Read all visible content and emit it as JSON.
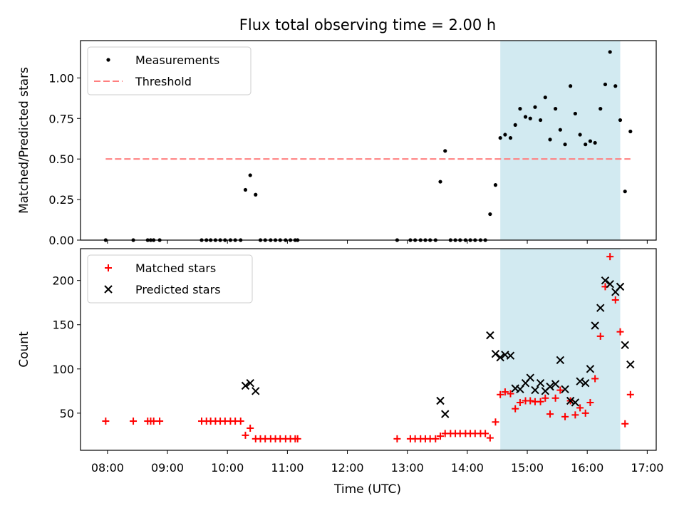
{
  "title": "Flux total observing time = 2.00 h",
  "xlabel": "Time (UTC)",
  "x_ticks": [
    "08:00",
    "09:00",
    "10:00",
    "11:00",
    "12:00",
    "13:00",
    "14:00",
    "15:00",
    "16:00",
    "17:00"
  ],
  "colors": {
    "measure": "#000000",
    "threshold": "#ff7f7f",
    "matched": "#ff0000",
    "predicted": "#000000",
    "shade": "#add8e6"
  },
  "chart_data": [
    {
      "type": "scatter",
      "panel": "top",
      "ylabel": "Matched/Predicted stars",
      "xlim": [
        7.55,
        17.15
      ],
      "ylim": [
        0,
        1.23
      ],
      "y_ticks": [
        0,
        0.25,
        0.5,
        0.75,
        1.0
      ],
      "y_tick_labels": [
        "0.00",
        "0.25",
        "0.50",
        "0.75",
        "1.00"
      ],
      "shaded_region": [
        14.55,
        16.55
      ],
      "legend": {
        "position": "top-left",
        "entries": [
          "Measurements",
          "Threshold"
        ]
      },
      "threshold": {
        "name": "Threshold",
        "x": [
          7.97,
          16.72
        ],
        "y": 0.5
      },
      "series": [
        {
          "name": "Measurements",
          "marker": "dot",
          "x": [
            7.97,
            8.43,
            8.67,
            8.72,
            8.77,
            8.87,
            9.57,
            9.65,
            9.72,
            9.8,
            9.88,
            9.96,
            10.05,
            10.13,
            10.22,
            10.3,
            10.38,
            10.47,
            10.55,
            10.63,
            10.72,
            10.8,
            10.88,
            10.97,
            11.05,
            11.13,
            11.17,
            12.83,
            13.05,
            13.13,
            13.22,
            13.3,
            13.38,
            13.47,
            13.55,
            13.63,
            13.72,
            13.8,
            13.88,
            13.97,
            14.05,
            14.13,
            14.22,
            14.3,
            14.38,
            14.47,
            14.55,
            14.63,
            14.72,
            14.8,
            14.88,
            14.97,
            15.05,
            15.13,
            15.22,
            15.3,
            15.38,
            15.47,
            15.55,
            15.63,
            15.72,
            15.8,
            15.88,
            15.97,
            16.05,
            16.13,
            16.22,
            16.3,
            16.38,
            16.47,
            16.55,
            16.63,
            16.72
          ],
          "y": [
            0,
            0,
            0,
            0,
            0,
            0,
            0,
            0,
            0,
            0,
            0,
            0,
            0,
            0,
            0,
            0.31,
            0.4,
            0.28,
            0,
            0,
            0,
            0,
            0,
            0,
            0,
            0,
            0,
            0,
            0,
            0,
            0,
            0,
            0,
            0,
            0.36,
            0.55,
            0,
            0,
            0,
            0,
            0,
            0,
            0,
            0,
            0.16,
            0.34,
            0.63,
            0.65,
            0.63,
            0.71,
            0.81,
            0.76,
            0.75,
            0.82,
            0.74,
            0.88,
            0.62,
            0.81,
            0.68,
            0.59,
            0.95,
            0.78,
            0.65,
            0.59,
            0.61,
            0.6,
            0.81,
            0.96,
            1.16,
            0.95,
            0.74,
            0.3,
            0.67
          ]
        }
      ]
    },
    {
      "type": "scatter",
      "panel": "bottom",
      "ylabel": "Count",
      "xlim": [
        7.55,
        17.15
      ],
      "ylim": [
        8,
        236
      ],
      "y_ticks": [
        50,
        100,
        150,
        200
      ],
      "y_tick_labels": [
        "50",
        "100",
        "150",
        "200"
      ],
      "shaded_region": [
        14.55,
        16.55
      ],
      "legend": {
        "position": "top-left",
        "entries": [
          "Matched stars",
          "Predicted stars"
        ]
      },
      "series": [
        {
          "name": "Matched stars",
          "marker": "plus",
          "x": [
            7.97,
            8.43,
            8.67,
            8.72,
            8.77,
            8.87,
            9.57,
            9.65,
            9.72,
            9.8,
            9.88,
            9.96,
            10.05,
            10.13,
            10.22,
            10.3,
            10.38,
            10.47,
            10.55,
            10.63,
            10.72,
            10.8,
            10.88,
            10.97,
            11.05,
            11.13,
            11.17,
            12.83,
            13.05,
            13.13,
            13.22,
            13.3,
            13.38,
            13.47,
            13.55,
            13.63,
            13.72,
            13.8,
            13.88,
            13.97,
            14.05,
            14.13,
            14.22,
            14.3,
            14.38,
            14.47,
            14.55,
            14.63,
            14.72,
            14.8,
            14.88,
            14.97,
            15.05,
            15.13,
            15.22,
            15.3,
            15.38,
            15.47,
            15.55,
            15.63,
            15.72,
            15.8,
            15.88,
            15.97,
            16.05,
            16.13,
            16.22,
            16.3,
            16.38,
            16.47,
            16.55,
            16.63,
            16.72
          ],
          "y": [
            41,
            41,
            41,
            41,
            41,
            41,
            41,
            41,
            41,
            41,
            41,
            41,
            41,
            41,
            41,
            25,
            33,
            21,
            21,
            21,
            21,
            21,
            21,
            21,
            21,
            21,
            21,
            21,
            21,
            21,
            21,
            21,
            21,
            21,
            24,
            27,
            27,
            27,
            27,
            27,
            27,
            27,
            27,
            27,
            22,
            40,
            71,
            74,
            72,
            55,
            62,
            64,
            64,
            63,
            63,
            67,
            49,
            67,
            76,
            46,
            64,
            48,
            56,
            50,
            62,
            89,
            137,
            193,
            227,
            178,
            142,
            38,
            71
          ]
        },
        {
          "name": "Predicted stars",
          "marker": "x",
          "x": [
            10.3,
            10.38,
            10.47,
            13.55,
            13.63,
            14.38,
            14.47,
            14.55,
            14.63,
            14.72,
            14.8,
            14.88,
            14.97,
            15.05,
            15.13,
            15.22,
            15.3,
            15.38,
            15.47,
            15.55,
            15.63,
            15.72,
            15.8,
            15.88,
            15.97,
            16.05,
            16.13,
            16.22,
            16.3,
            16.38,
            16.47,
            16.55,
            16.63,
            16.72
          ],
          "y": [
            81,
            84,
            75,
            64,
            49,
            138,
            117,
            113,
            116,
            115,
            78,
            77,
            84,
            90,
            76,
            84,
            75,
            80,
            83,
            110,
            77,
            64,
            62,
            86,
            84,
            100,
            149,
            169,
            200,
            196,
            187,
            193,
            127,
            105
          ]
        }
      ]
    }
  ]
}
